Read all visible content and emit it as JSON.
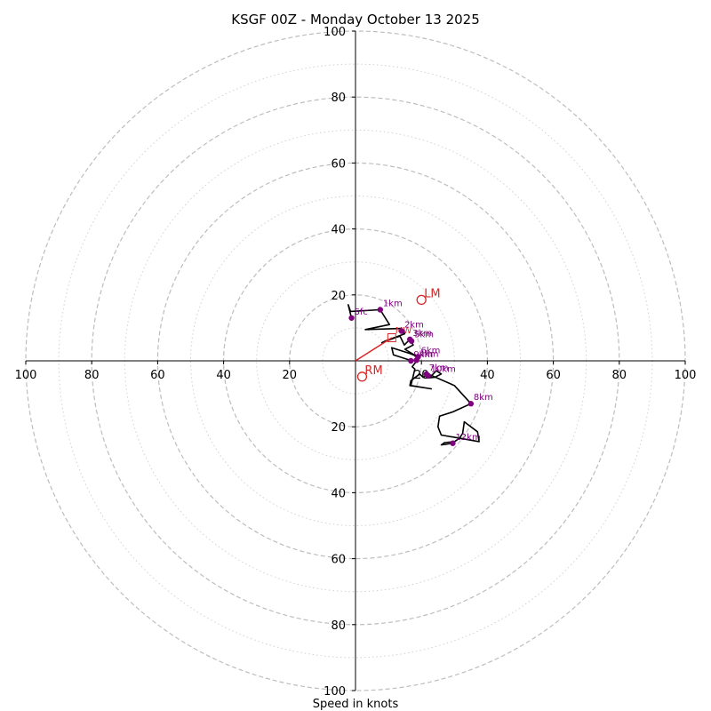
{
  "chart_data": {
    "type": "hodograph",
    "title": "KSGF 00Z - Monday October 13 2025",
    "xlabel": "Speed in knots",
    "units": "knots",
    "xlim": [
      -100,
      100
    ],
    "ylim": [
      -100,
      100
    ],
    "rings": {
      "major": [
        20,
        40,
        60,
        80,
        100
      ],
      "minor": [
        10,
        30,
        50,
        70,
        90
      ]
    },
    "ticks": {
      "x": [
        {
          "v": -100,
          "label": "100"
        },
        {
          "v": -80,
          "label": "80"
        },
        {
          "v": -60,
          "label": "60"
        },
        {
          "v": -40,
          "label": "40"
        },
        {
          "v": -20,
          "label": "20"
        },
        {
          "v": 20,
          "label": "20"
        },
        {
          "v": 40,
          "label": "40"
        },
        {
          "v": 60,
          "label": "60"
        },
        {
          "v": 80,
          "label": "80"
        },
        {
          "v": 100,
          "label": "100"
        }
      ],
      "y": [
        {
          "v": 100,
          "label": "100"
        },
        {
          "v": 80,
          "label": "80"
        },
        {
          "v": 60,
          "label": "60"
        },
        {
          "v": 40,
          "label": "40"
        },
        {
          "v": 20,
          "label": "20"
        },
        {
          "v": -20,
          "label": "20"
        },
        {
          "v": -40,
          "label": "40"
        },
        {
          "v": -60,
          "label": "60"
        },
        {
          "v": -80,
          "label": "80"
        },
        {
          "v": -100,
          "label": "100"
        }
      ]
    },
    "trace": {
      "color": "#000000",
      "points": [
        [
          -1.2,
          13.0
        ],
        [
          -2.2,
          17.0
        ],
        [
          -1.5,
          15.0
        ],
        [
          7.5,
          15.5
        ],
        [
          10.3,
          11.0
        ],
        [
          3.0,
          9.5
        ],
        [
          14.0,
          9.8
        ],
        [
          14.9,
          8.2
        ],
        [
          9.0,
          6.0
        ],
        [
          8.0,
          5.5
        ],
        [
          12.0,
          7.0
        ],
        [
          13.5,
          7.5
        ],
        [
          14.8,
          4.8
        ],
        [
          16.5,
          6.5
        ],
        [
          17.5,
          4.8
        ],
        [
          15.0,
          3.5
        ],
        [
          17.5,
          2.0
        ],
        [
          19.0,
          1.2
        ],
        [
          16.5,
          2.2
        ],
        [
          11.0,
          4.0
        ],
        [
          11.5,
          1.8
        ],
        [
          16.5,
          0.2
        ],
        [
          18.5,
          0.2
        ],
        [
          19.5,
          1.2
        ],
        [
          17.2,
          -1.8
        ],
        [
          18.0,
          -2.5
        ],
        [
          16.8,
          -7.5
        ],
        [
          23.0,
          -8.5
        ],
        [
          16.5,
          -7.5
        ],
        [
          16.8,
          -6.0
        ],
        [
          19.5,
          -4.0
        ],
        [
          20.5,
          -5.0
        ],
        [
          21.5,
          -4.5
        ],
        [
          22.8,
          -4.8
        ],
        [
          24.5,
          -3.0
        ],
        [
          26.0,
          -4.0
        ],
        [
          24.0,
          -5.0
        ],
        [
          21.5,
          -5.2
        ],
        [
          22.0,
          -4.0
        ],
        [
          30.0,
          -7.5
        ],
        [
          35.0,
          -13.0
        ],
        [
          29.5,
          -15.5
        ],
        [
          25.5,
          -16.8
        ],
        [
          25.0,
          -20.0
        ],
        [
          26.0,
          -22.5
        ],
        [
          37.5,
          -24.5
        ],
        [
          37.0,
          -21.5
        ],
        [
          33.0,
          -18.5
        ],
        [
          32.5,
          -22.0
        ],
        [
          31.5,
          -23.5
        ],
        [
          30.0,
          -24.5
        ],
        [
          27.0,
          -24.8
        ],
        [
          26.0,
          -25.5
        ],
        [
          29.5,
          -25.0
        ]
      ]
    },
    "markers": [
      {
        "label": "Sfc",
        "u": -1.2,
        "v": 13.0
      },
      {
        "label": "1km",
        "u": 7.5,
        "v": 15.5
      },
      {
        "label": "2km",
        "u": 14.0,
        "v": 9.0
      },
      {
        "label": "3km",
        "u": 16.5,
        "v": 6.5
      },
      {
        "label": "5km",
        "u": 17.0,
        "v": 6.0
      },
      {
        "label": "6km",
        "u": 19.0,
        "v": 1.2
      },
      {
        "label": "4km",
        "u": 18.5,
        "v": 0.2
      },
      {
        "label": "9km",
        "u": 16.8,
        "v": 0.0
      },
      {
        "label": "7km",
        "u": 21.5,
        "v": -4.0
      },
      {
        "label": "10km",
        "u": 22.0,
        "v": -4.5
      },
      {
        "label": "8km",
        "u": 35.0,
        "v": -13.0
      },
      {
        "label": "12km",
        "u": 29.5,
        "v": -25.0
      }
    ],
    "storm_motion": [
      {
        "label": "LM",
        "u": 20.0,
        "v": 18.5
      },
      {
        "label": "RM",
        "u": 2.0,
        "v": -4.8
      }
    ],
    "mean_wind": {
      "label": "MW",
      "u": 11.0,
      "v": 7.0
    },
    "colors": {
      "trace": "#000000",
      "marker": "#800080",
      "storm_motion": "#d62728",
      "grid": "#bdbdbd",
      "axis": "#000000"
    }
  }
}
